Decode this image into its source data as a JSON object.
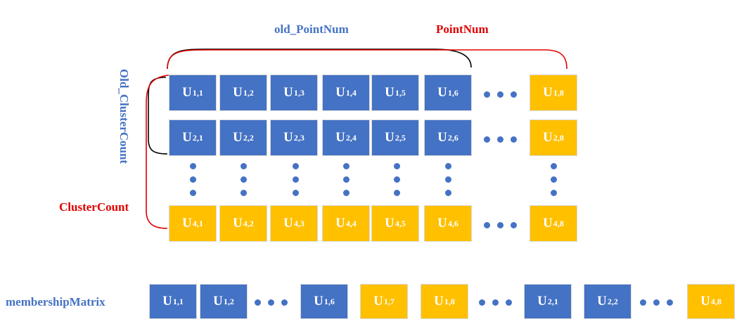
{
  "labels": {
    "old_point_num": "old_PointNum",
    "point_num": "PointNum",
    "old_cluster_count": "Old_ClusterCount",
    "cluster_count": "ClusterCount",
    "membership_matrix": "membershipMatrix"
  },
  "colors": {
    "blue": "#4472C4",
    "gold": "#FFC000",
    "label_blue": "#4472C4",
    "label_red": "#E00000",
    "bracket_black": "#000000",
    "bracket_red": "#E00000"
  },
  "grid": {
    "rows": [
      {
        "index": "1",
        "cells": [
          {
            "base": "U",
            "sub": "1,1",
            "color": "blue"
          },
          {
            "base": "U",
            "sub": "1,2",
            "color": "blue"
          },
          {
            "base": "U",
            "sub": "1,3",
            "color": "blue"
          },
          {
            "base": "U",
            "sub": "1,4",
            "color": "blue"
          },
          {
            "base": "U",
            "sub": "1,5",
            "color": "blue"
          },
          {
            "base": "U",
            "sub": "1,6",
            "color": "blue"
          },
          {
            "base": "U",
            "sub": "1,8",
            "color": "gold"
          }
        ]
      },
      {
        "index": "2",
        "cells": [
          {
            "base": "U",
            "sub": "2,1",
            "color": "blue"
          },
          {
            "base": "U",
            "sub": "2,2",
            "color": "blue"
          },
          {
            "base": "U",
            "sub": "2,3",
            "color": "blue"
          },
          {
            "base": "U",
            "sub": "2,4",
            "color": "blue"
          },
          {
            "base": "U",
            "sub": "2,5",
            "color": "blue"
          },
          {
            "base": "U",
            "sub": "2,6",
            "color": "blue"
          },
          {
            "base": "U",
            "sub": "2,8",
            "color": "gold"
          }
        ]
      },
      {
        "index": "4",
        "cells": [
          {
            "base": "U",
            "sub": "4,1",
            "color": "gold"
          },
          {
            "base": "U",
            "sub": "4,2",
            "color": "gold"
          },
          {
            "base": "U",
            "sub": "4,3",
            "color": "gold"
          },
          {
            "base": "U",
            "sub": "4,4",
            "color": "gold"
          },
          {
            "base": "U",
            "sub": "4,5",
            "color": "gold"
          },
          {
            "base": "U",
            "sub": "4,6",
            "color": "gold"
          },
          {
            "base": "U",
            "sub": "4,8",
            "color": "gold"
          }
        ]
      }
    ]
  },
  "membership": [
    {
      "base": "U",
      "sub": "1,1",
      "color": "blue"
    },
    {
      "base": "U",
      "sub": "1,2",
      "color": "blue"
    },
    {
      "base": "U",
      "sub": "1,6",
      "color": "blue"
    },
    {
      "base": "U",
      "sub": "1,7",
      "color": "gold"
    },
    {
      "base": "U",
      "sub": "1,8",
      "color": "gold"
    },
    {
      "base": "U",
      "sub": "2,1",
      "color": "blue"
    },
    {
      "base": "U",
      "sub": "2,2",
      "color": "blue"
    },
    {
      "base": "U",
      "sub": "4,8",
      "color": "gold"
    }
  ]
}
